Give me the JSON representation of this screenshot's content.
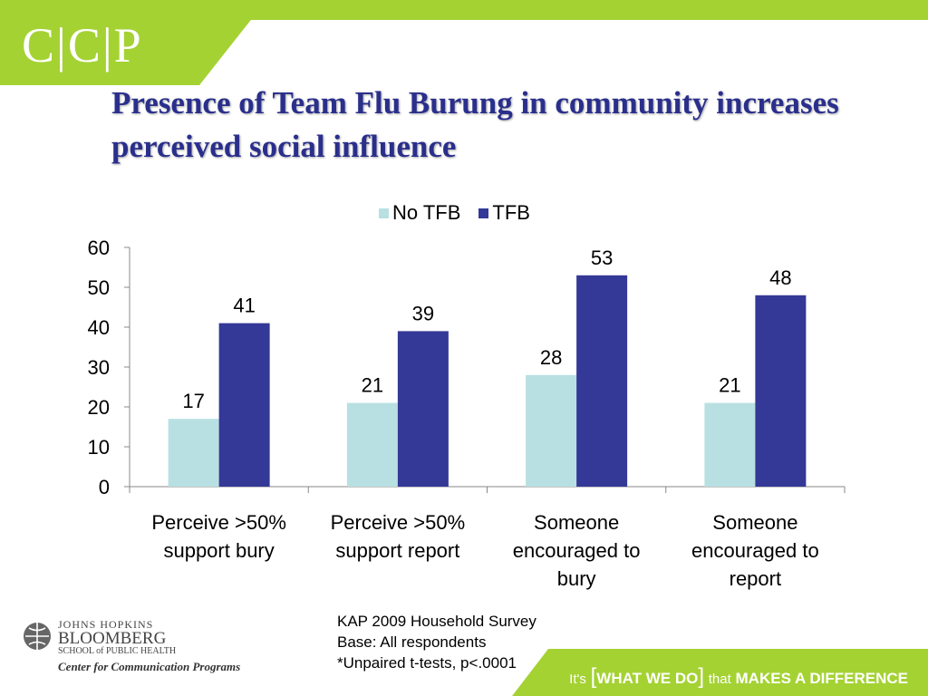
{
  "branding": {
    "logo_text": "C|C|P",
    "jhu_line1": "JOHNS HOPKINS",
    "jhu_line2": "BLOOMBERG",
    "jhu_line3": "SCHOOL of PUBLIC HEALTH",
    "jhu_line4": "Center for Communication Programs",
    "tag_its": "It's",
    "tag_what": "WHAT WE DO",
    "tag_that": "that",
    "tag_makes": "MAKES A DIFFERENCE",
    "accent_green": "#a4d233"
  },
  "slide": {
    "title": "Presence of Team Flu Burung in community increases perceived social influence"
  },
  "source_notes": {
    "line1": "KAP 2009 Household Survey",
    "line2": "Base:  All respondents",
    "line3": "*Unpaired t-tests, p<.0001"
  },
  "chart_data": {
    "type": "bar",
    "title": "",
    "xlabel": "",
    "ylabel": "",
    "categories": [
      [
        "Perceive >50%",
        "support bury"
      ],
      [
        "Perceive >50%",
        "support report"
      ],
      [
        "Someone",
        "encouraged to",
        "bury"
      ],
      [
        "Someone",
        "encouraged to",
        "report"
      ]
    ],
    "series": [
      {
        "name": "No TFB",
        "values": [
          17,
          21,
          28,
          21
        ],
        "color": "#b8e0e2"
      },
      {
        "name": "TFB",
        "values": [
          41,
          39,
          53,
          48
        ],
        "color": "#343896"
      }
    ],
    "ylim": [
      0,
      60
    ],
    "yticks": [
      0,
      10,
      20,
      30,
      40,
      50,
      60
    ],
    "grid": false,
    "legend_position": "top-center",
    "data_labels": true
  }
}
